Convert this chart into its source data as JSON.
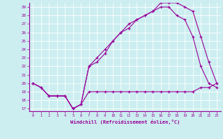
{
  "xlabel": "Windchill (Refroidissement éolien,°C)",
  "bg_color": "#cceef0",
  "line_color": "#990099",
  "xlim": [
    -0.5,
    23.5
  ],
  "ylim": [
    16.7,
    29.5
  ],
  "xticks": [
    0,
    1,
    2,
    3,
    4,
    5,
    6,
    7,
    8,
    9,
    10,
    11,
    12,
    13,
    14,
    15,
    16,
    17,
    18,
    19,
    20,
    21,
    22,
    23
  ],
  "yticks": [
    17,
    18,
    19,
    20,
    21,
    22,
    23,
    24,
    25,
    26,
    27,
    28,
    29
  ],
  "line1_x": [
    0,
    1,
    2,
    3,
    4,
    5,
    6,
    7,
    8,
    9,
    10,
    11,
    12,
    13,
    14,
    15,
    16,
    17,
    18,
    19,
    20,
    21,
    22,
    23
  ],
  "line1_y": [
    20.0,
    19.5,
    18.5,
    18.5,
    18.5,
    17.0,
    17.5,
    19.0,
    19.0,
    19.0,
    19.0,
    19.0,
    19.0,
    19.0,
    19.0,
    19.0,
    19.0,
    19.0,
    19.0,
    19.0,
    19.0,
    19.5,
    19.5,
    20.0
  ],
  "line2_x": [
    0,
    1,
    2,
    3,
    4,
    5,
    6,
    7,
    8,
    9,
    10,
    11,
    12,
    13,
    14,
    15,
    16,
    17,
    18,
    19,
    20,
    21,
    22,
    23
  ],
  "line2_y": [
    20.0,
    19.5,
    18.5,
    18.5,
    18.5,
    17.0,
    17.5,
    22.0,
    23.0,
    24.0,
    25.0,
    26.0,
    26.5,
    27.5,
    28.0,
    28.5,
    29.0,
    29.0,
    28.0,
    27.5,
    25.5,
    22.0,
    20.0,
    19.5
  ],
  "line3_x": [
    0,
    1,
    2,
    3,
    4,
    5,
    6,
    7,
    8,
    9,
    10,
    11,
    12,
    13,
    14,
    15,
    16,
    17,
    18,
    19,
    20,
    21,
    22,
    23
  ],
  "line3_y": [
    20.0,
    19.5,
    18.5,
    18.5,
    18.5,
    17.0,
    17.5,
    22.0,
    22.5,
    23.5,
    25.0,
    26.0,
    27.0,
    27.5,
    28.0,
    28.5,
    29.5,
    29.5,
    29.5,
    29.0,
    28.5,
    25.5,
    22.5,
    20.0
  ]
}
